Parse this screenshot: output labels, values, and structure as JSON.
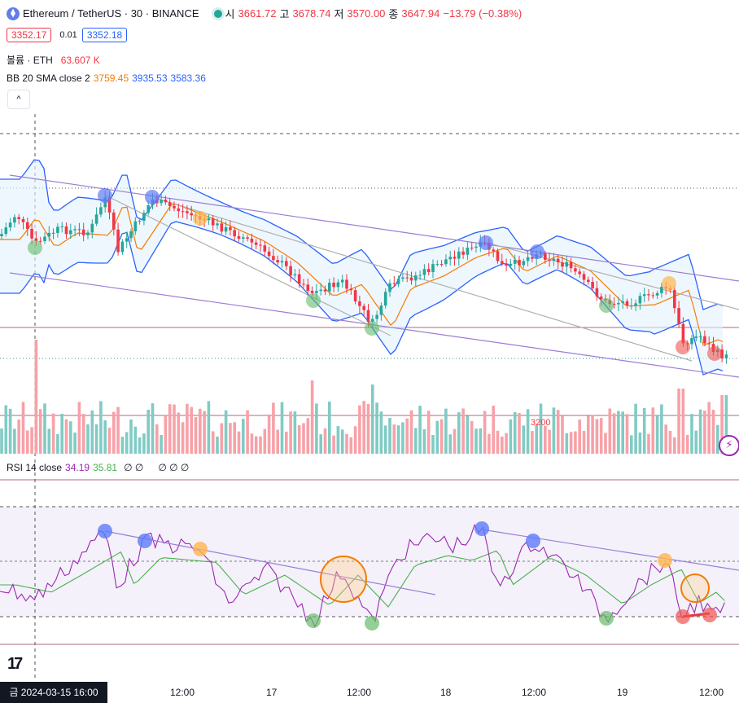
{
  "legend": {
    "symbol": "Ethereum / TetherUS · 30 · BINANCE",
    "open_label": "시",
    "open": "3661.72",
    "high_label": "고",
    "high": "3678.74",
    "low_label": "저",
    "low": "3570.00",
    "close_label": "종",
    "close": "3647.94",
    "change": "−13.79 (−0.38%)",
    "bid": "3352.17",
    "spread": "0.01",
    "ask": "3352.18",
    "volume_label": "볼륨 · ETH",
    "volume": "63.607 K",
    "bb_label": "BB 20 SMA close 2",
    "bb_basis": "3759.45",
    "bb_upper": "3935.53",
    "bb_lower": "3583.36",
    "rsi_label": "RSI 14 close",
    "rsi_value": "34.19",
    "rsi_ma": "35.81",
    "rsi_extra1": "∅ ∅",
    "rsi_extra2": "∅ ∅ ∅",
    "volume_marker": "3200"
  },
  "colors": {
    "up": "#26a69a",
    "down": "#f23645",
    "bb_band": "#2962ff",
    "bb_basis": "#f57c00",
    "rsi": "#9c27b0",
    "rsi_ma": "#4caf50",
    "trendline": "#9c7dd6"
  },
  "time_axis": {
    "labels": [
      "12:00",
      "17",
      "12:00",
      "18",
      "12:00",
      "19",
      "12:00"
    ],
    "crosshair": "금 2024-03-15   16:00"
  },
  "icons": {
    "collapse": "chevron-up-icon",
    "logo": "tradingview-logo",
    "alert": "lightning-icon"
  }
}
